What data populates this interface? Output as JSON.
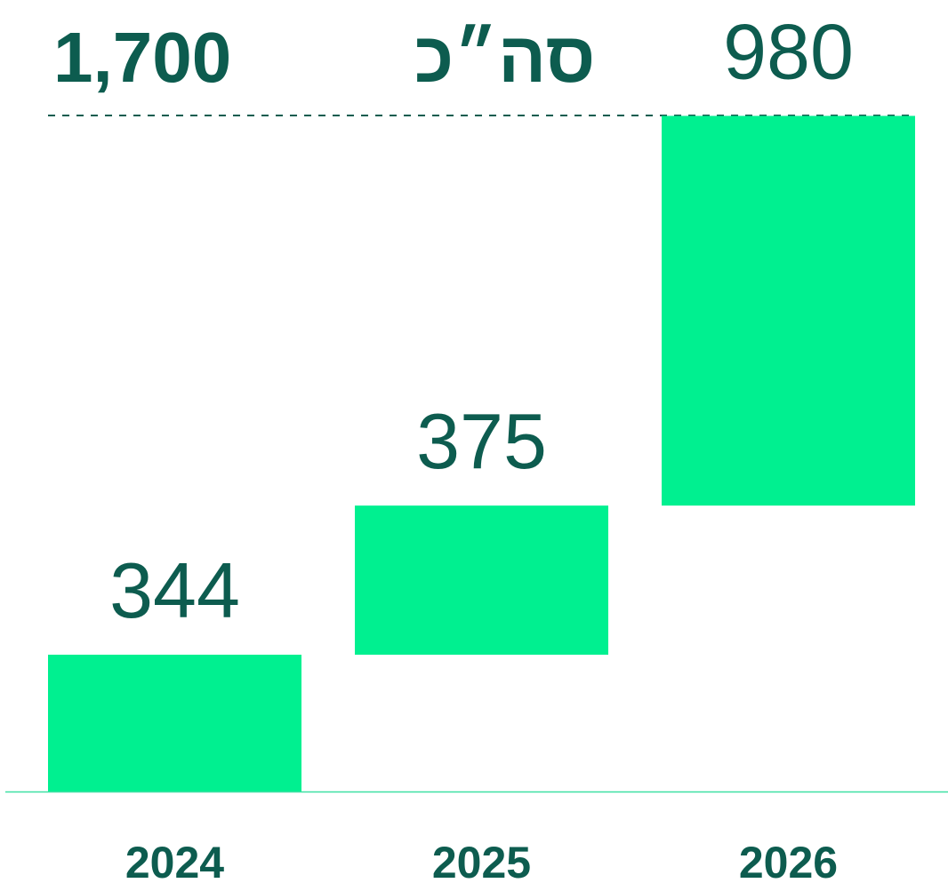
{
  "chart_data": {
    "type": "waterfall",
    "categories": [
      "2024",
      "2025",
      "2026"
    ],
    "values": [
      344,
      375,
      980
    ],
    "color": "#00f090",
    "total": 1700,
    "total_label": "1,700",
    "total_title": "סה״כ",
    "ylim": [
      0,
      1700
    ]
  }
}
